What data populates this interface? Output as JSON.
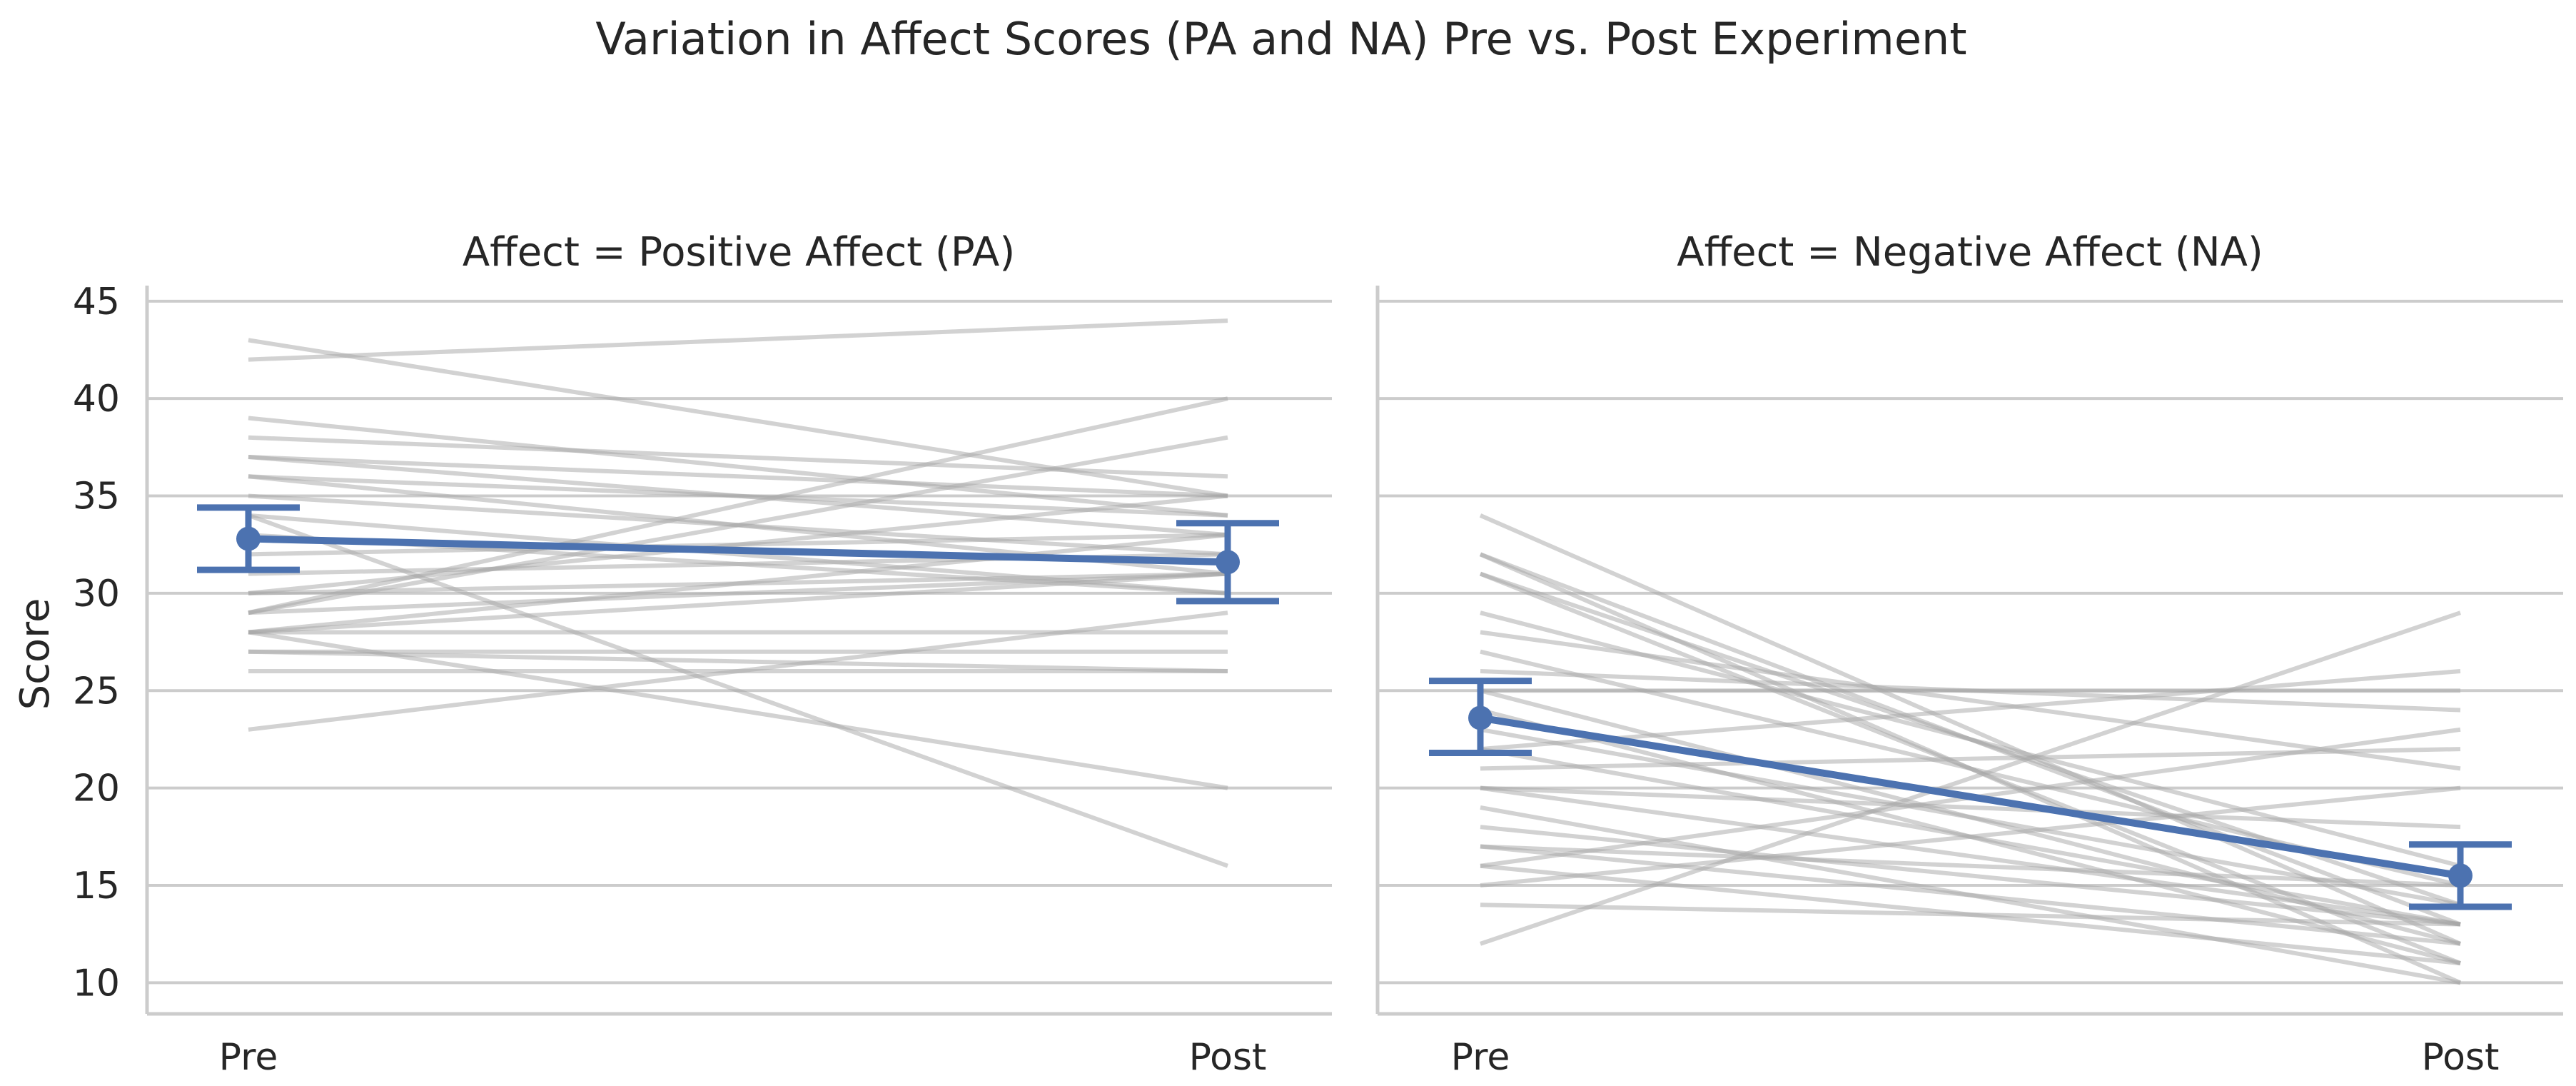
{
  "figure": {
    "title": "Variation in Affect Scores (PA and NA) Pre vs. Post Experiment",
    "ylabel": "Score",
    "yticks": [
      10,
      15,
      20,
      25,
      30,
      35,
      40,
      45
    ]
  },
  "chart_data": [
    {
      "type": "line",
      "title": "Affect = Positive Affect (PA)",
      "categories": [
        "Pre",
        "Post"
      ],
      "ylabel": "Score",
      "ylim": [
        8.4,
        45.8
      ],
      "grid": true,
      "colors": {
        "individual": "#a6a6a6",
        "mean": "#4c72b0"
      },
      "individual_series": [
        [
          42,
          44
        ],
        [
          43,
          35
        ],
        [
          39,
          34
        ],
        [
          38,
          36
        ],
        [
          37,
          35
        ],
        [
          37,
          33
        ],
        [
          36,
          34
        ],
        [
          36,
          31
        ],
        [
          35,
          32
        ],
        [
          34,
          30
        ],
        [
          34,
          16
        ],
        [
          33,
          30
        ],
        [
          32,
          33
        ],
        [
          31,
          32
        ],
        [
          30,
          35
        ],
        [
          30,
          31
        ],
        [
          29,
          40
        ],
        [
          29,
          38
        ],
        [
          29,
          31
        ],
        [
          28,
          33
        ],
        [
          28,
          31
        ],
        [
          28,
          28
        ],
        [
          28,
          20
        ],
        [
          27,
          27
        ],
        [
          27,
          26
        ],
        [
          26,
          26
        ],
        [
          23,
          29
        ]
      ],
      "mean": {
        "values": [
          32.8,
          31.6
        ],
        "ci_low": [
          31.2,
          29.6
        ],
        "ci_high": [
          34.4,
          33.6
        ]
      }
    },
    {
      "type": "line",
      "title": "Affect = Negative Affect (NA)",
      "categories": [
        "Pre",
        "Post"
      ],
      "ylabel": "",
      "ylim": [
        8.4,
        45.8
      ],
      "grid": true,
      "colors": {
        "individual": "#a6a6a6",
        "mean": "#4c72b0"
      },
      "individual_series": [
        [
          34,
          12
        ],
        [
          32,
          13
        ],
        [
          32,
          10
        ],
        [
          31,
          14
        ],
        [
          31,
          11
        ],
        [
          29,
          16
        ],
        [
          28,
          21
        ],
        [
          27,
          15
        ],
        [
          26,
          24
        ],
        [
          25,
          25
        ],
        [
          25,
          12
        ],
        [
          24,
          11
        ],
        [
          23,
          14
        ],
        [
          22,
          26
        ],
        [
          22,
          13
        ],
        [
          21,
          22
        ],
        [
          20,
          13
        ],
        [
          20,
          18
        ],
        [
          19,
          10
        ],
        [
          18,
          13
        ],
        [
          17,
          12
        ],
        [
          17,
          15
        ],
        [
          16,
          11
        ],
        [
          16,
          23
        ],
        [
          15,
          20
        ],
        [
          14,
          13
        ],
        [
          12,
          29
        ]
      ],
      "mean": {
        "values": [
          23.6,
          15.5
        ],
        "ci_low": [
          21.8,
          13.9
        ],
        "ci_high": [
          25.5,
          17.1
        ]
      }
    }
  ]
}
